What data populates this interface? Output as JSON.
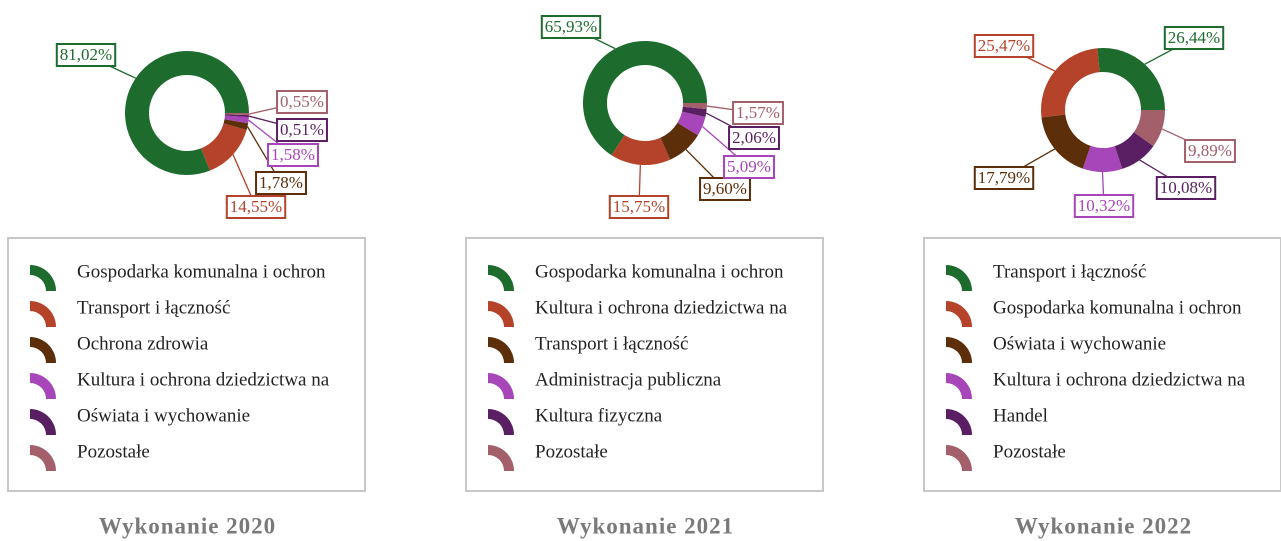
{
  "chart_data": [
    {
      "type": "pie",
      "donut": true,
      "title": "Wykonanie 2020",
      "categories": [
        "Gospodarka komunalna i ochron",
        "Transport i łączność",
        "Ochrona zdrowia",
        "Kultura i ochrona dziedzictwa na",
        "Oświata i wychowanie",
        "Pozostałe"
      ],
      "values": [
        81.02,
        14.55,
        1.78,
        1.58,
        0.51,
        0.55
      ],
      "value_labels": [
        "81,02%",
        "14,55%",
        "1,78%",
        "1,58%",
        "0,51%",
        "0,55%"
      ],
      "colors": [
        "#1e6b2e",
        "#b5432a",
        "#5c2e0a",
        "#a646b8",
        "#5a1f62",
        "#a35f6a"
      ]
    },
    {
      "type": "pie",
      "donut": true,
      "title": "Wykonanie 2021",
      "categories": [
        "Gospodarka komunalna i ochron",
        "Kultura i ochrona dziedzictwa na",
        "Transport i łączność",
        "Administracja publiczna",
        "Kultura fizyczna",
        "Pozostałe"
      ],
      "values": [
        65.93,
        15.75,
        9.6,
        5.09,
        2.06,
        1.57
      ],
      "value_labels": [
        "65,93%",
        "15,75%",
        "9,60%",
        "5,09%",
        "2,06%",
        "1,57%"
      ],
      "colors": [
        "#1e6b2e",
        "#b5432a",
        "#5c2e0a",
        "#a646b8",
        "#5a1f62",
        "#a35f6a"
      ]
    },
    {
      "type": "pie",
      "donut": true,
      "title": "Wykonanie 2022",
      "categories": [
        "Transport i łączność",
        "Gospodarka komunalna i ochron",
        "Oświata i wychowanie",
        "Kultura i ochrona dziedzictwa na",
        "Handel",
        "Pozostałe"
      ],
      "values": [
        26.44,
        25.47,
        17.79,
        10.32,
        10.08,
        9.89
      ],
      "value_labels": [
        "26,44%",
        "25,47%",
        "17,79%",
        "10,32%",
        "10,08%",
        "9,89%"
      ],
      "colors": [
        "#1e6b2e",
        "#b5432a",
        "#5c2e0a",
        "#a646b8",
        "#5a1f62",
        "#a35f6a"
      ]
    }
  ]
}
